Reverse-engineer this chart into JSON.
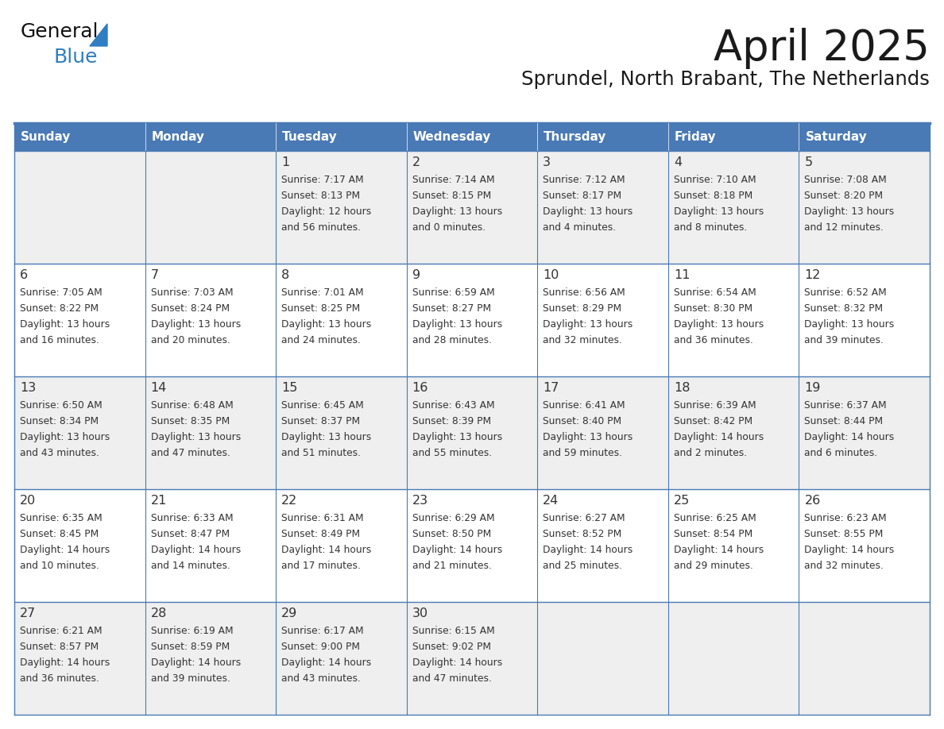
{
  "title": "April 2025",
  "subtitle": "Sprundel, North Brabant, The Netherlands",
  "days_of_week": [
    "Sunday",
    "Monday",
    "Tuesday",
    "Wednesday",
    "Thursday",
    "Friday",
    "Saturday"
  ],
  "header_bg": "#4a7ab5",
  "header_text": "#ffffff",
  "cell_bg_odd": "#efefef",
  "cell_bg_even": "#ffffff",
  "cell_border": "#4a7ab5",
  "text_color": "#333333",
  "title_color": "#1a1a1a",
  "logo_text_color": "#1a1a1a",
  "logo_blue_color": "#2e7ec1",
  "logo_triangle_color": "#2e7ec1",
  "calendar_data": [
    [
      {
        "day": "",
        "sunrise": "",
        "sunset": "",
        "daylight_line1": "",
        "daylight_line2": ""
      },
      {
        "day": "",
        "sunrise": "",
        "sunset": "",
        "daylight_line1": "",
        "daylight_line2": ""
      },
      {
        "day": "1",
        "sunrise": "Sunrise: 7:17 AM",
        "sunset": "Sunset: 8:13 PM",
        "daylight_line1": "Daylight: 12 hours",
        "daylight_line2": "and 56 minutes."
      },
      {
        "day": "2",
        "sunrise": "Sunrise: 7:14 AM",
        "sunset": "Sunset: 8:15 PM",
        "daylight_line1": "Daylight: 13 hours",
        "daylight_line2": "and 0 minutes."
      },
      {
        "day": "3",
        "sunrise": "Sunrise: 7:12 AM",
        "sunset": "Sunset: 8:17 PM",
        "daylight_line1": "Daylight: 13 hours",
        "daylight_line2": "and 4 minutes."
      },
      {
        "day": "4",
        "sunrise": "Sunrise: 7:10 AM",
        "sunset": "Sunset: 8:18 PM",
        "daylight_line1": "Daylight: 13 hours",
        "daylight_line2": "and 8 minutes."
      },
      {
        "day": "5",
        "sunrise": "Sunrise: 7:08 AM",
        "sunset": "Sunset: 8:20 PM",
        "daylight_line1": "Daylight: 13 hours",
        "daylight_line2": "and 12 minutes."
      }
    ],
    [
      {
        "day": "6",
        "sunrise": "Sunrise: 7:05 AM",
        "sunset": "Sunset: 8:22 PM",
        "daylight_line1": "Daylight: 13 hours",
        "daylight_line2": "and 16 minutes."
      },
      {
        "day": "7",
        "sunrise": "Sunrise: 7:03 AM",
        "sunset": "Sunset: 8:24 PM",
        "daylight_line1": "Daylight: 13 hours",
        "daylight_line2": "and 20 minutes."
      },
      {
        "day": "8",
        "sunrise": "Sunrise: 7:01 AM",
        "sunset": "Sunset: 8:25 PM",
        "daylight_line1": "Daylight: 13 hours",
        "daylight_line2": "and 24 minutes."
      },
      {
        "day": "9",
        "sunrise": "Sunrise: 6:59 AM",
        "sunset": "Sunset: 8:27 PM",
        "daylight_line1": "Daylight: 13 hours",
        "daylight_line2": "and 28 minutes."
      },
      {
        "day": "10",
        "sunrise": "Sunrise: 6:56 AM",
        "sunset": "Sunset: 8:29 PM",
        "daylight_line1": "Daylight: 13 hours",
        "daylight_line2": "and 32 minutes."
      },
      {
        "day": "11",
        "sunrise": "Sunrise: 6:54 AM",
        "sunset": "Sunset: 8:30 PM",
        "daylight_line1": "Daylight: 13 hours",
        "daylight_line2": "and 36 minutes."
      },
      {
        "day": "12",
        "sunrise": "Sunrise: 6:52 AM",
        "sunset": "Sunset: 8:32 PM",
        "daylight_line1": "Daylight: 13 hours",
        "daylight_line2": "and 39 minutes."
      }
    ],
    [
      {
        "day": "13",
        "sunrise": "Sunrise: 6:50 AM",
        "sunset": "Sunset: 8:34 PM",
        "daylight_line1": "Daylight: 13 hours",
        "daylight_line2": "and 43 minutes."
      },
      {
        "day": "14",
        "sunrise": "Sunrise: 6:48 AM",
        "sunset": "Sunset: 8:35 PM",
        "daylight_line1": "Daylight: 13 hours",
        "daylight_line2": "and 47 minutes."
      },
      {
        "day": "15",
        "sunrise": "Sunrise: 6:45 AM",
        "sunset": "Sunset: 8:37 PM",
        "daylight_line1": "Daylight: 13 hours",
        "daylight_line2": "and 51 minutes."
      },
      {
        "day": "16",
        "sunrise": "Sunrise: 6:43 AM",
        "sunset": "Sunset: 8:39 PM",
        "daylight_line1": "Daylight: 13 hours",
        "daylight_line2": "and 55 minutes."
      },
      {
        "day": "17",
        "sunrise": "Sunrise: 6:41 AM",
        "sunset": "Sunset: 8:40 PM",
        "daylight_line1": "Daylight: 13 hours",
        "daylight_line2": "and 59 minutes."
      },
      {
        "day": "18",
        "sunrise": "Sunrise: 6:39 AM",
        "sunset": "Sunset: 8:42 PM",
        "daylight_line1": "Daylight: 14 hours",
        "daylight_line2": "and 2 minutes."
      },
      {
        "day": "19",
        "sunrise": "Sunrise: 6:37 AM",
        "sunset": "Sunset: 8:44 PM",
        "daylight_line1": "Daylight: 14 hours",
        "daylight_line2": "and 6 minutes."
      }
    ],
    [
      {
        "day": "20",
        "sunrise": "Sunrise: 6:35 AM",
        "sunset": "Sunset: 8:45 PM",
        "daylight_line1": "Daylight: 14 hours",
        "daylight_line2": "and 10 minutes."
      },
      {
        "day": "21",
        "sunrise": "Sunrise: 6:33 AM",
        "sunset": "Sunset: 8:47 PM",
        "daylight_line1": "Daylight: 14 hours",
        "daylight_line2": "and 14 minutes."
      },
      {
        "day": "22",
        "sunrise": "Sunrise: 6:31 AM",
        "sunset": "Sunset: 8:49 PM",
        "daylight_line1": "Daylight: 14 hours",
        "daylight_line2": "and 17 minutes."
      },
      {
        "day": "23",
        "sunrise": "Sunrise: 6:29 AM",
        "sunset": "Sunset: 8:50 PM",
        "daylight_line1": "Daylight: 14 hours",
        "daylight_line2": "and 21 minutes."
      },
      {
        "day": "24",
        "sunrise": "Sunrise: 6:27 AM",
        "sunset": "Sunset: 8:52 PM",
        "daylight_line1": "Daylight: 14 hours",
        "daylight_line2": "and 25 minutes."
      },
      {
        "day": "25",
        "sunrise": "Sunrise: 6:25 AM",
        "sunset": "Sunset: 8:54 PM",
        "daylight_line1": "Daylight: 14 hours",
        "daylight_line2": "and 29 minutes."
      },
      {
        "day": "26",
        "sunrise": "Sunrise: 6:23 AM",
        "sunset": "Sunset: 8:55 PM",
        "daylight_line1": "Daylight: 14 hours",
        "daylight_line2": "and 32 minutes."
      }
    ],
    [
      {
        "day": "27",
        "sunrise": "Sunrise: 6:21 AM",
        "sunset": "Sunset: 8:57 PM",
        "daylight_line1": "Daylight: 14 hours",
        "daylight_line2": "and 36 minutes."
      },
      {
        "day": "28",
        "sunrise": "Sunrise: 6:19 AM",
        "sunset": "Sunset: 8:59 PM",
        "daylight_line1": "Daylight: 14 hours",
        "daylight_line2": "and 39 minutes."
      },
      {
        "day": "29",
        "sunrise": "Sunrise: 6:17 AM",
        "sunset": "Sunset: 9:00 PM",
        "daylight_line1": "Daylight: 14 hours",
        "daylight_line2": "and 43 minutes."
      },
      {
        "day": "30",
        "sunrise": "Sunrise: 6:15 AM",
        "sunset": "Sunset: 9:02 PM",
        "daylight_line1": "Daylight: 14 hours",
        "daylight_line2": "and 47 minutes."
      },
      {
        "day": "",
        "sunrise": "",
        "sunset": "",
        "daylight_line1": "",
        "daylight_line2": ""
      },
      {
        "day": "",
        "sunrise": "",
        "sunset": "",
        "daylight_line1": "",
        "daylight_line2": ""
      },
      {
        "day": "",
        "sunrise": "",
        "sunset": "",
        "daylight_line1": "",
        "daylight_line2": ""
      }
    ]
  ]
}
